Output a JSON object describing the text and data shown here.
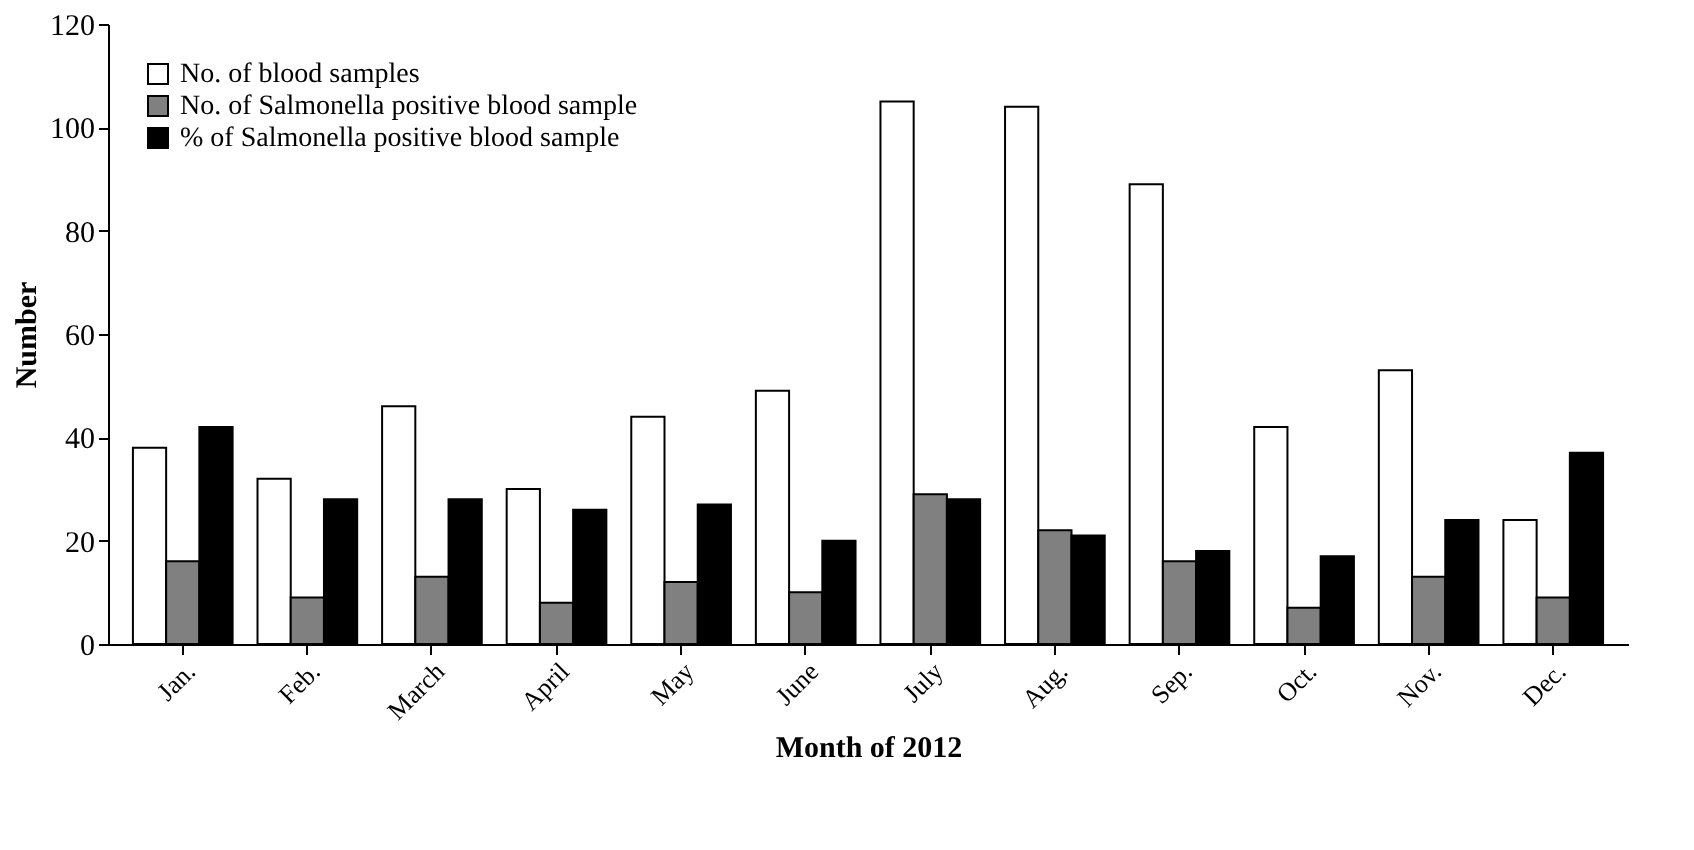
{
  "chart_data": {
    "type": "bar",
    "xlabel": "Month of 2012",
    "ylabel": "Number",
    "categories": [
      "Jan.",
      "Feb.",
      "March",
      "April",
      "May",
      "June",
      "July",
      "Aug.",
      "Sep.",
      "Oct.",
      "Nov.",
      "Dec."
    ],
    "series": [
      {
        "name": "No. of blood samples",
        "color": "#ffffff",
        "values": [
          38,
          32,
          46,
          30,
          44,
          49,
          105,
          104,
          89,
          42,
          53,
          24
        ]
      },
      {
        "name": "No. of Salmonella positive blood sample",
        "color": "#808080",
        "values": [
          16,
          9,
          13,
          8,
          12,
          10,
          29,
          22,
          16,
          7,
          13,
          9
        ]
      },
      {
        "name": "% of Salmonella positive blood sample",
        "color": "#000000",
        "values": [
          42,
          28,
          28,
          26,
          27,
          20,
          28,
          21,
          18,
          17,
          24,
          37
        ]
      }
    ],
    "ylim": [
      0,
      120
    ],
    "yticks": [
      0,
      20,
      40,
      60,
      80,
      100,
      120
    ],
    "grid": false,
    "legend": "top left"
  }
}
